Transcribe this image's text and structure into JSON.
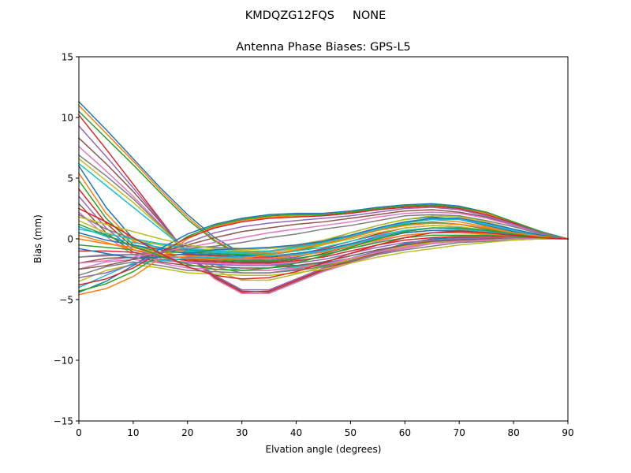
{
  "header": {
    "suptitle": "KMDQZG12FQS     NONE"
  },
  "chart_data": {
    "type": "line",
    "title": "Antenna Phase Biases: GPS-L5",
    "xlabel": "Elvation angle (degrees)",
    "ylabel": "Bias (mm)",
    "xlim": [
      0,
      90
    ],
    "ylim": [
      -15,
      15
    ],
    "xticks": [
      0,
      10,
      20,
      30,
      40,
      50,
      60,
      70,
      80,
      90
    ],
    "yticks": [
      -15,
      -10,
      -5,
      0,
      5,
      10,
      15
    ],
    "yticklabels": [
      "−15",
      "−10",
      "−5",
      "0",
      "5",
      "10",
      "15"
    ],
    "grid": false,
    "legend": "none",
    "colors": [
      "#1f77b4",
      "#ff7f0e",
      "#2ca02c",
      "#d62728",
      "#9467bd",
      "#8c564b",
      "#e377c2",
      "#7f7f7f",
      "#bcbd22",
      "#17becf"
    ],
    "x": [
      0,
      5,
      10,
      15,
      20,
      25,
      30,
      35,
      40,
      45,
      50,
      55,
      60,
      65,
      70,
      75,
      80,
      85,
      90
    ],
    "series": [
      {
        "values": [
          11.3,
          9.0,
          6.6,
          4.2,
          2.0,
          0.1,
          -1.2,
          -1.9,
          -2.2,
          -2.0,
          -1.6,
          -1.0,
          -0.4,
          0.0,
          0.1,
          0.1,
          0.0,
          0.0,
          0.0
        ]
      },
      {
        "values": [
          11.0,
          8.7,
          6.4,
          4.0,
          1.8,
          -0.1,
          -1.3,
          -2.0,
          -2.3,
          -2.1,
          -1.7,
          -1.1,
          -0.5,
          -0.1,
          0.0,
          0.0,
          0.0,
          0.0,
          0.0
        ]
      },
      {
        "values": [
          10.5,
          8.3,
          6.1,
          3.8,
          1.6,
          -0.2,
          -1.4,
          -2.1,
          -2.4,
          -2.2,
          -1.8,
          -1.2,
          -0.6,
          -0.2,
          0.0,
          0.0,
          0.0,
          0.0,
          0.0
        ]
      },
      {
        "values": [
          10.2,
          7.4,
          4.5,
          1.6,
          -1.3,
          -3.2,
          -4.4,
          -4.3,
          -3.4,
          -2.5,
          -1.8,
          -1.1,
          -0.6,
          -0.3,
          -0.1,
          0.0,
          0.0,
          0.0,
          0.0
        ]
      },
      {
        "values": [
          9.3,
          6.8,
          4.2,
          1.5,
          -1.2,
          -3.0,
          -4.2,
          -4.2,
          -3.3,
          -2.4,
          -1.7,
          -1.0,
          -0.5,
          -0.2,
          -0.1,
          0.0,
          0.0,
          0.0,
          0.0
        ]
      },
      {
        "values": [
          8.3,
          6.2,
          3.9,
          1.4,
          -1.3,
          -3.1,
          -4.3,
          -4.4,
          -3.5,
          -2.6,
          -1.9,
          -1.2,
          -0.7,
          -0.3,
          -0.1,
          0.0,
          0.0,
          0.0,
          0.0
        ]
      },
      {
        "values": [
          7.6,
          5.6,
          3.5,
          1.2,
          -1.4,
          -3.3,
          -4.5,
          -4.5,
          -3.6,
          -2.7,
          -2.0,
          -1.3,
          -0.8,
          -0.4,
          -0.2,
          -0.1,
          0.0,
          0.0,
          0.0
        ]
      },
      {
        "values": [
          6.9,
          5.2,
          3.3,
          1.1,
          -1.0,
          -2.3,
          -2.8,
          -2.8,
          -2.5,
          -2.1,
          -1.6,
          -1.1,
          -0.6,
          -0.3,
          -0.1,
          0.0,
          0.0,
          0.0,
          0.0
        ]
      },
      {
        "values": [
          6.6,
          4.8,
          3.0,
          1.0,
          -1.1,
          -2.6,
          -3.4,
          -3.4,
          -2.9,
          -2.3,
          -1.7,
          -1.1,
          -0.6,
          -0.3,
          -0.1,
          0.0,
          0.0,
          0.0,
          0.0
        ]
      },
      {
        "values": [
          6.2,
          4.4,
          2.6,
          0.8,
          -1.0,
          -2.1,
          -2.6,
          -2.6,
          -2.3,
          -1.9,
          -1.4,
          -0.9,
          -0.5,
          -0.2,
          -0.1,
          0.0,
          0.0,
          0.0,
          0.0
        ]
      },
      {
        "values": [
          6.0,
          2.6,
          0.0,
          -0.8,
          -0.9,
          -1.0,
          -1.1,
          -1.0,
          -0.7,
          -0.2,
          0.5,
          1.1,
          1.6,
          1.8,
          1.6,
          1.1,
          0.6,
          0.2,
          0.0
        ]
      },
      {
        "values": [
          5.4,
          2.1,
          -0.2,
          -0.9,
          -1.0,
          -1.1,
          -1.2,
          -1.1,
          -0.8,
          -0.3,
          0.3,
          0.9,
          1.4,
          1.6,
          1.4,
          1.0,
          0.5,
          0.2,
          0.0
        ]
      },
      {
        "values": [
          4.8,
          1.7,
          -0.5,
          -1.1,
          -1.1,
          -1.2,
          -1.3,
          -1.3,
          -1.0,
          -0.5,
          0.1,
          0.7,
          1.2,
          1.4,
          1.2,
          0.8,
          0.4,
          0.1,
          0.0
        ]
      },
      {
        "values": [
          4.1,
          1.3,
          -0.7,
          -1.3,
          -1.3,
          -1.4,
          -1.5,
          -1.5,
          -1.3,
          -0.8,
          -0.2,
          0.4,
          0.9,
          1.1,
          1.0,
          0.7,
          0.4,
          0.1,
          0.0
        ]
      },
      {
        "values": [
          3.5,
          0.9,
          -0.9,
          -1.5,
          -1.5,
          -1.6,
          -1.7,
          -1.7,
          -1.5,
          -1.0,
          -0.4,
          0.2,
          0.7,
          0.9,
          0.8,
          0.6,
          0.3,
          0.1,
          0.0
        ]
      },
      {
        "values": [
          2.9,
          0.5,
          -1.1,
          -1.7,
          -1.7,
          -1.8,
          -1.9,
          -1.9,
          -1.7,
          -1.2,
          -0.6,
          0.0,
          0.5,
          0.7,
          0.7,
          0.5,
          0.3,
          0.1,
          0.0
        ]
      },
      {
        "values": [
          2.2,
          0.2,
          -1.3,
          -1.8,
          -1.9,
          -2.0,
          -2.1,
          -2.1,
          -1.9,
          -1.4,
          -0.8,
          -0.2,
          0.3,
          0.5,
          0.5,
          0.4,
          0.2,
          0.1,
          0.0
        ]
      },
      {
        "values": [
          2.0,
          0.8,
          0.0,
          -0.4,
          -0.6,
          -0.7,
          -0.8,
          -0.8,
          -0.6,
          -0.3,
          0.2,
          0.7,
          1.1,
          1.3,
          1.2,
          0.9,
          0.5,
          0.2,
          0.0
        ]
      },
      {
        "values": [
          1.5,
          0.5,
          -0.1,
          -0.5,
          -0.8,
          -0.9,
          -1.0,
          -1.0,
          -0.8,
          -0.5,
          0.0,
          0.5,
          0.9,
          1.1,
          1.0,
          0.7,
          0.4,
          0.1,
          0.0
        ]
      },
      {
        "values": [
          1.0,
          0.2,
          -0.3,
          -0.7,
          -1.0,
          -1.1,
          -1.2,
          -1.2,
          -1.0,
          -0.7,
          -0.2,
          0.3,
          0.7,
          0.9,
          0.8,
          0.6,
          0.3,
          0.1,
          0.0
        ]
      },
      {
        "values": [
          0.5,
          -0.1,
          -0.5,
          -0.9,
          -1.2,
          -1.3,
          -1.4,
          -1.4,
          -1.2,
          -0.9,
          -0.4,
          0.1,
          0.5,
          0.7,
          0.6,
          0.5,
          0.3,
          0.1,
          0.0
        ]
      },
      {
        "values": [
          0.0,
          -0.4,
          -0.7,
          -1.1,
          -1.4,
          -1.5,
          -1.6,
          -1.6,
          -1.4,
          -1.1,
          -0.6,
          -0.1,
          0.3,
          0.5,
          0.5,
          0.4,
          0.2,
          0.1,
          0.0
        ]
      },
      {
        "values": [
          -0.5,
          -0.7,
          -0.9,
          -1.3,
          -1.6,
          -1.7,
          -1.8,
          -1.8,
          -1.6,
          -1.3,
          -0.8,
          -0.3,
          0.1,
          0.3,
          0.3,
          0.3,
          0.2,
          0.1,
          0.0
        ]
      },
      {
        "values": [
          -1.0,
          -1.0,
          -1.1,
          -1.5,
          -1.8,
          -1.9,
          -2.0,
          -2.0,
          -1.8,
          -1.5,
          -1.0,
          -0.5,
          -0.1,
          0.1,
          0.2,
          0.2,
          0.1,
          0.0,
          0.0
        ]
      },
      {
        "values": [
          -1.5,
          -1.3,
          -1.3,
          -1.7,
          -2.0,
          -2.1,
          -2.2,
          -2.2,
          -2.0,
          -1.7,
          -1.2,
          -0.7,
          -0.3,
          -0.1,
          0.0,
          0.1,
          0.1,
          0.0,
          0.0
        ]
      },
      {
        "values": [
          -2.0,
          -1.6,
          -1.5,
          -1.9,
          -2.2,
          -2.3,
          -2.4,
          -2.4,
          -2.2,
          -1.9,
          -1.4,
          -0.9,
          -0.5,
          -0.2,
          -0.1,
          0.0,
          0.0,
          0.0,
          0.0
        ]
      },
      {
        "values": [
          -2.5,
          -1.9,
          -1.7,
          -2.0,
          -2.4,
          -2.5,
          -2.6,
          -2.6,
          -2.4,
          -2.1,
          -1.6,
          -1.1,
          -0.7,
          -0.4,
          -0.2,
          -0.1,
          0.0,
          0.0,
          0.0
        ]
      },
      {
        "values": [
          -3.0,
          -2.3,
          -1.9,
          -2.2,
          -2.6,
          -2.7,
          -2.8,
          -2.8,
          -2.6,
          -2.3,
          -1.8,
          -1.3,
          -0.9,
          -0.6,
          -0.3,
          -0.2,
          -0.1,
          0.0,
          0.0
        ]
      },
      {
        "values": [
          -3.5,
          -2.6,
          -2.1,
          -2.4,
          -2.8,
          -2.9,
          -3.0,
          -3.0,
          -2.8,
          -2.5,
          -2.0,
          -1.5,
          -1.1,
          -0.8,
          -0.5,
          -0.3,
          -0.1,
          0.0,
          0.0
        ]
      },
      {
        "values": [
          -4.0,
          -3.0,
          -2.0,
          -1.8,
          -1.6,
          -1.5,
          -1.5,
          -1.4,
          -1.3,
          -1.0,
          -0.5,
          0.1,
          0.6,
          0.9,
          0.9,
          0.7,
          0.4,
          0.1,
          0.0
        ]
      },
      {
        "values": [
          -4.4,
          -3.5,
          -2.2,
          -0.8,
          0.4,
          1.2,
          1.7,
          2.0,
          2.1,
          2.1,
          2.3,
          2.6,
          2.8,
          2.9,
          2.7,
          2.2,
          1.4,
          0.6,
          0.0
        ]
      },
      {
        "values": [
          -4.6,
          -4.1,
          -3.1,
          -1.6,
          0.0,
          1.0,
          1.5,
          1.8,
          1.9,
          2.0,
          2.2,
          2.5,
          2.7,
          2.8,
          2.6,
          2.1,
          1.3,
          0.5,
          0.0
        ]
      },
      {
        "values": [
          -4.3,
          -3.7,
          -2.7,
          -1.3,
          0.2,
          1.1,
          1.6,
          1.9,
          2.0,
          2.0,
          2.2,
          2.5,
          2.7,
          2.8,
          2.6,
          2.2,
          1.4,
          0.6,
          0.0
        ]
      },
      {
        "values": [
          -3.8,
          -3.3,
          -2.4,
          -1.1,
          0.1,
          0.9,
          1.4,
          1.7,
          1.8,
          1.9,
          2.1,
          2.4,
          2.6,
          2.7,
          2.5,
          2.0,
          1.3,
          0.5,
          0.0
        ]
      },
      {
        "values": [
          -3.2,
          -2.8,
          -2.1,
          -1.2,
          -0.3,
          0.5,
          1.0,
          1.3,
          1.5,
          1.7,
          1.9,
          2.2,
          2.5,
          2.6,
          2.4,
          1.9,
          1.2,
          0.5,
          0.0
        ]
      },
      {
        "values": [
          -2.5,
          -2.2,
          -1.7,
          -1.1,
          -0.5,
          0.1,
          0.6,
          0.9,
          1.2,
          1.4,
          1.7,
          2.0,
          2.3,
          2.4,
          2.2,
          1.8,
          1.1,
          0.4,
          0.0
        ]
      },
      {
        "values": [
          -2.0,
          -1.8,
          -1.5,
          -1.1,
          -0.7,
          -0.3,
          0.1,
          0.5,
          0.8,
          1.1,
          1.4,
          1.8,
          2.1,
          2.2,
          2.1,
          1.7,
          1.1,
          0.4,
          0.0
        ]
      },
      {
        "values": [
          -1.5,
          -1.4,
          -1.3,
          -1.1,
          -0.8,
          -0.6,
          -0.3,
          0.1,
          0.4,
          0.8,
          1.1,
          1.5,
          1.9,
          2.0,
          1.9,
          1.5,
          1.0,
          0.4,
          0.0
        ]
      },
      {
        "values": [
          1.8,
          1.2,
          0.6,
          0.0,
          -0.5,
          -0.8,
          -0.9,
          -0.8,
          -0.5,
          -0.1,
          0.5,
          1.1,
          1.6,
          1.9,
          1.8,
          1.4,
          0.8,
          0.3,
          0.0
        ]
      },
      {
        "values": [
          0.8,
          0.4,
          0.0,
          -0.4,
          -0.8,
          -1.0,
          -1.1,
          -1.0,
          -0.7,
          -0.3,
          0.2,
          0.8,
          1.3,
          1.6,
          1.6,
          1.2,
          0.7,
          0.3,
          0.0
        ]
      },
      {
        "values": [
          -0.8,
          -1.2,
          -1.6,
          -1.5,
          -1.2,
          -0.9,
          -0.8,
          -0.7,
          -0.5,
          -0.2,
          0.3,
          0.9,
          1.4,
          1.7,
          1.7,
          1.3,
          0.8,
          0.3,
          0.0
        ]
      },
      {
        "values": [
          0.3,
          -0.3,
          -0.9,
          -1.3,
          -1.6,
          -1.7,
          -1.6,
          -1.3,
          -0.9,
          -0.4,
          0.1,
          0.7,
          1.1,
          1.3,
          1.2,
          0.9,
          0.5,
          0.2,
          0.0
        ]
      },
      {
        "values": [
          1.2,
          0.3,
          -0.6,
          -1.4,
          -2.1,
          -2.5,
          -2.6,
          -2.4,
          -2.0,
          -1.4,
          -0.7,
          0.0,
          0.6,
          0.9,
          0.9,
          0.7,
          0.4,
          0.1,
          0.0
        ]
      },
      {
        "values": [
          2.5,
          1.4,
          0.1,
          -1.2,
          -2.3,
          -3.0,
          -3.3,
          -3.2,
          -2.7,
          -2.0,
          -1.2,
          -0.5,
          0.1,
          0.5,
          0.6,
          0.5,
          0.3,
          0.1,
          0.0
        ]
      }
    ]
  }
}
